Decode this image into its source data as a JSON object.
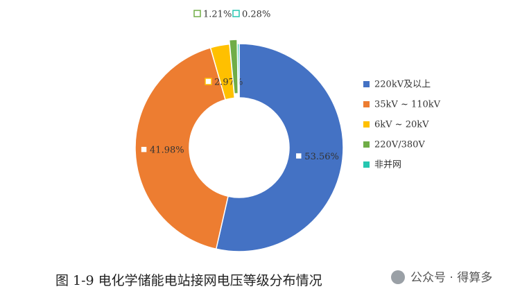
{
  "chart_data": {
    "type": "donut",
    "categories": [
      "220kV及以上",
      "35kV ~ 110kV",
      "6kV ~ 20kV",
      "220V/380V",
      "非并网"
    ],
    "values": [
      53.56,
      41.98,
      2.97,
      1.21,
      0.28
    ],
    "value_labels": [
      "53.56%",
      "41.98%",
      "2.97%",
      "1.21%",
      "0.28%"
    ],
    "colors": [
      "#4472c4",
      "#ed7d31",
      "#ffc000",
      "#70ad47",
      "#26c6b0"
    ],
    "caption": "图 1-9  电化学储能电站接网电压等级分布情况",
    "source": "公众号 · 得算多"
  }
}
